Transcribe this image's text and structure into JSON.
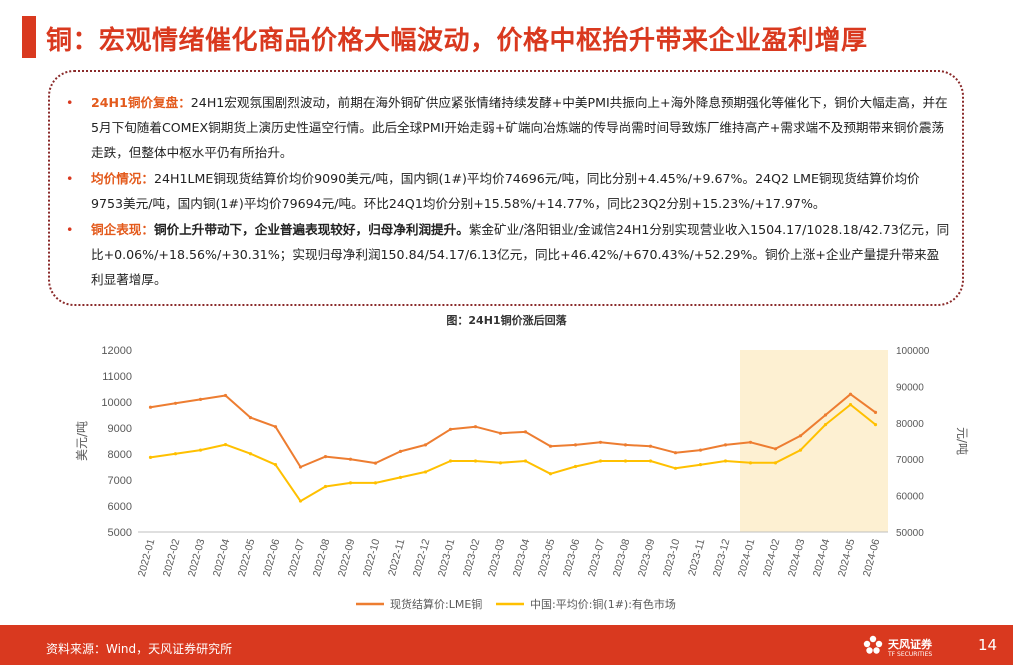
{
  "page": {
    "title": "铜：宏观情绪催化商品价格大幅波动，价格中枢抬升带来企业盈利增厚",
    "page_number": "14"
  },
  "summary": {
    "bullets": [
      {
        "head": "24H1铜价复盘：",
        "text": "24H1宏观氛围剧烈波动，前期在海外铜矿供应紧张情绪持续发酵+中美PMI共振向上+海外降息预期强化等催化下，铜价大幅走高，并在5月下旬随着COMEX铜期货上演历史性逼空行情。此后全球PMI开始走弱+矿端向冶炼端的传导尚需时间导致炼厂维持高产+需求端不及预期带来铜价震荡走跌，但整体中枢水平仍有所抬升。"
      },
      {
        "head": "均价情况：",
        "text": "24H1LME铜现货结算价均价9090美元/吨，国内铜(1#)平均价74696元/吨，同比分别+4.45%/+9.67%。24Q2 LME铜现货结算价均价9753美元/吨，国内铜(1#)平均价79694元/吨。环比24Q1均价分别+15.58%/+14.77%，同比23Q2分别+15.23%/+17.97%。"
      },
      {
        "head": "铜企表现：",
        "strong": "铜价上升带动下，企业普遍表现较好，归母净利润提升。",
        "text": "紫金矿业/洛阳钼业/金诚信24H1分别实现营业收入1504.17/1028.18/42.73亿元，同比+0.06%/+18.56%/+30.31%；实现归母净利润150.84/54.17/6.13亿元，同比+46.42%/+670.43%/+52.29%。铜价上涨+企业产量提升带来盈利显著增厚。"
      }
    ]
  },
  "chart_caption": "图：24H1铜价涨后回落",
  "chart_data": {
    "type": "line",
    "title": "",
    "x": [
      "2022-01",
      "2022-02",
      "2022-03",
      "2022-04",
      "2022-05",
      "2022-06",
      "2022-07",
      "2022-08",
      "2022-09",
      "2022-10",
      "2022-11",
      "2022-12",
      "2023-01",
      "2023-02",
      "2023-03",
      "2023-04",
      "2023-05",
      "2023-06",
      "2023-07",
      "2023-08",
      "2023-09",
      "2023-10",
      "2023-11",
      "2023-12",
      "2024-01",
      "2024-02",
      "2024-03",
      "2024-04",
      "2024-05",
      "2024-06"
    ],
    "ylabel": "美元/吨",
    "ylabel_right": "元/吨",
    "ylim": [
      5000,
      12000
    ],
    "ylim_right": [
      50000,
      100000
    ],
    "yticks": [
      5000,
      6000,
      7000,
      8000,
      9000,
      10000,
      11000,
      12000
    ],
    "yticks_right": [
      50000,
      60000,
      70000,
      80000,
      90000,
      100000
    ],
    "highlight_range": [
      "2024-01",
      "2024-06"
    ],
    "grid": false,
    "legend_position": "bottom",
    "series": [
      {
        "name": "现货结算价:LME铜",
        "axis": "left",
        "color": "#ed7d31",
        "values": [
          9800,
          9950,
          10100,
          10250,
          9400,
          9050,
          7500,
          7900,
          7800,
          7650,
          8100,
          8350,
          8950,
          9050,
          8800,
          8850,
          8300,
          8350,
          8450,
          8350,
          8300,
          8050,
          8150,
          8350,
          8450,
          8200,
          8700,
          9500,
          10300,
          9600
        ]
      },
      {
        "name": "中国:平均价:铜(1#):有色市场",
        "axis": "right",
        "color": "#ffc000",
        "values": [
          70500,
          71500,
          72500,
          74000,
          71500,
          68500,
          58500,
          62500,
          63500,
          63500,
          65000,
          66500,
          69500,
          69500,
          69000,
          69500,
          66000,
          68000,
          69500,
          69500,
          69500,
          67500,
          68500,
          69500,
          69000,
          69000,
          72500,
          79500,
          85000,
          79500
        ]
      }
    ]
  },
  "footer": {
    "source": "资料来源：Wind，天风证券研究所",
    "brand": "天风证券",
    "brand_sub": "TF SECURITIES"
  },
  "colors": {
    "accent": "#d9391f",
    "lme": "#ed7d31",
    "china": "#ffc000",
    "highlight": "#fdf0d2"
  }
}
